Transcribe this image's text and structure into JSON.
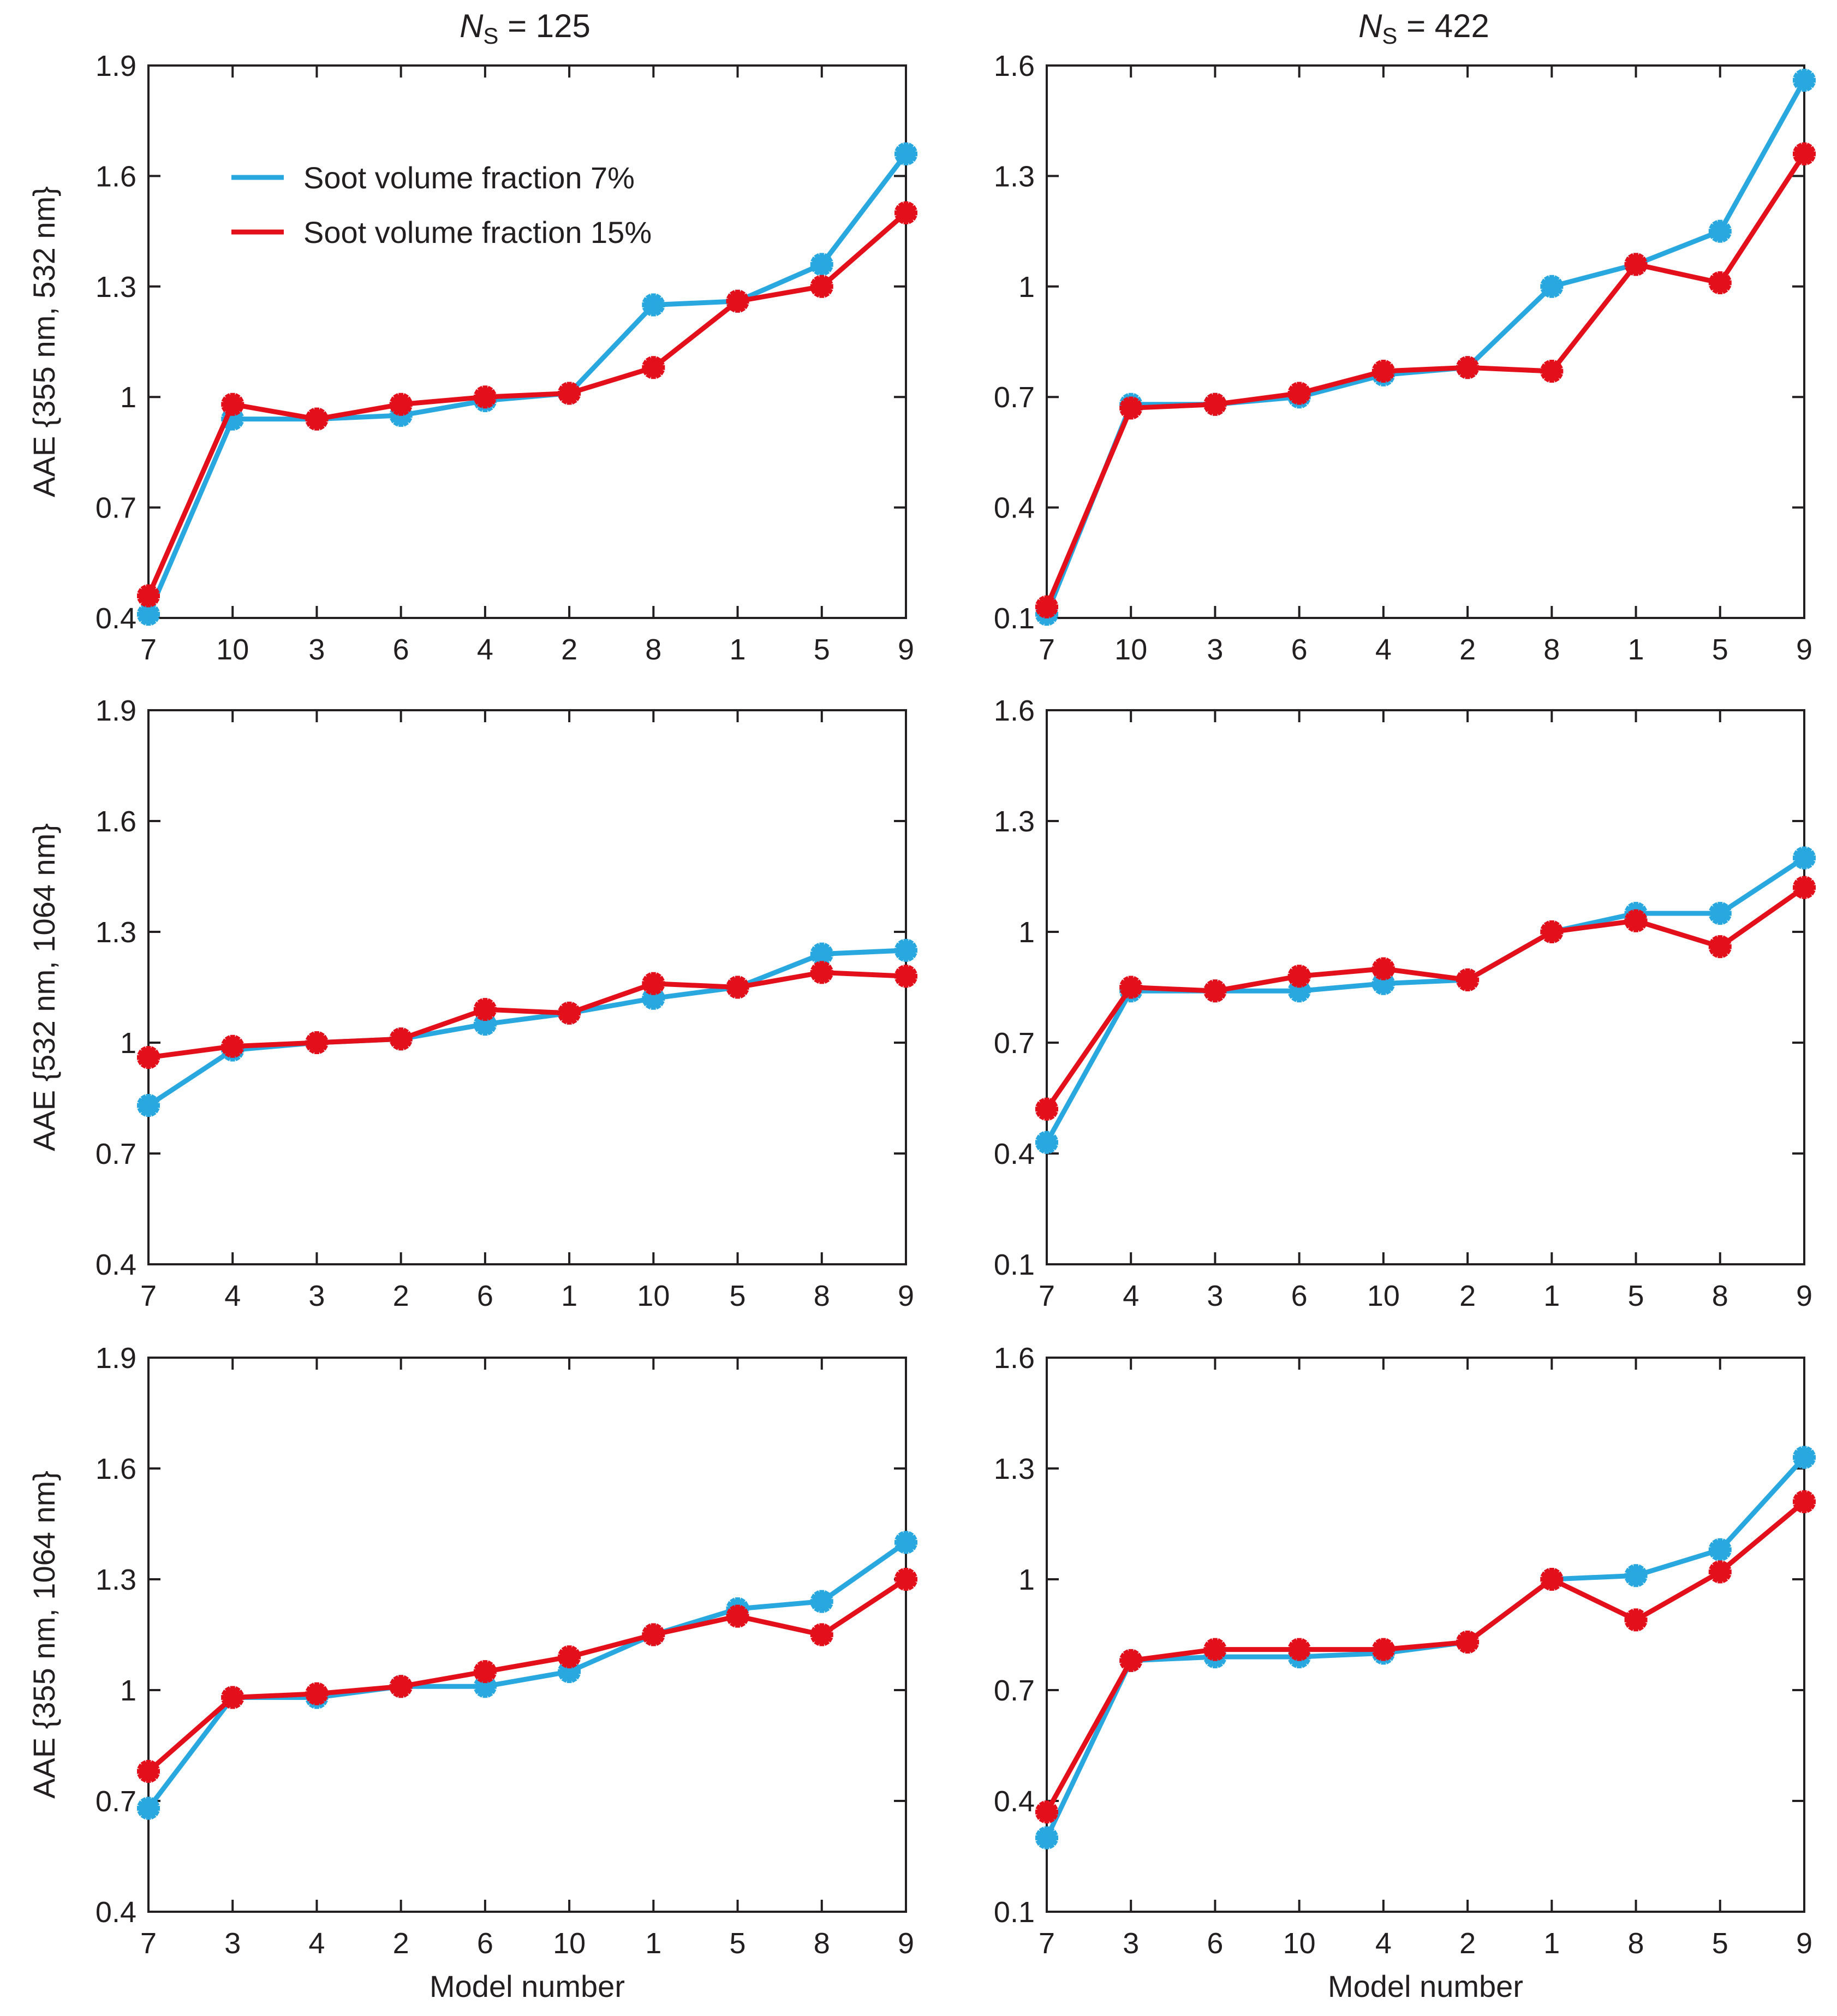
{
  "figure": {
    "column_titles": [
      {
        "italic": "N",
        "sub": "S",
        "rest": " = 125"
      },
      {
        "italic": "N",
        "sub": "S",
        "rest": " = 422"
      }
    ],
    "shared_xlabel": "Model number"
  },
  "colors": {
    "series_7": "#29a8e0",
    "series_15": "#e3101b",
    "axis": "#231f20"
  },
  "chart_data": [
    {
      "type": "line",
      "panel": "row1-col1",
      "title": "N_S = 125",
      "ylabel": "AAE {355 nm, 532 nm}",
      "xlabel": "",
      "categories": [
        "7",
        "10",
        "3",
        "6",
        "4",
        "2",
        "8",
        "1",
        "5",
        "9"
      ],
      "ylim": [
        0.4,
        1.9
      ],
      "yticks": [
        0.4,
        0.7,
        1,
        1.3,
        1.6,
        1.9
      ],
      "ytick_labels": [
        "0.4",
        "0.7",
        "1",
        "1.3",
        "1.6",
        "1.9"
      ],
      "legend": {
        "position": "top-left",
        "entries": [
          "Soot volume fraction 7%",
          "Soot volume fraction 15%"
        ]
      },
      "series": [
        {
          "name": "Soot volume fraction 7%",
          "color": "#29a8e0",
          "values": [
            0.41,
            0.94,
            0.94,
            0.95,
            0.99,
            1.01,
            1.25,
            1.26,
            1.36,
            1.66
          ]
        },
        {
          "name": "Soot volume fraction 15%",
          "color": "#e3101b",
          "values": [
            0.46,
            0.98,
            0.94,
            0.98,
            1.0,
            1.01,
            1.08,
            1.26,
            1.3,
            1.5
          ]
        }
      ]
    },
    {
      "type": "line",
      "panel": "row1-col2",
      "title": "N_S = 422",
      "ylabel": "",
      "xlabel": "",
      "categories": [
        "7",
        "10",
        "3",
        "6",
        "4",
        "2",
        "8",
        "1",
        "5",
        "9"
      ],
      "ylim": [
        0.1,
        1.6
      ],
      "yticks": [
        0.1,
        0.4,
        0.7,
        1,
        1.3,
        1.6
      ],
      "ytick_labels": [
        "0.1",
        "0.4",
        "0.7",
        "1",
        "1.3",
        "1.6"
      ],
      "series": [
        {
          "name": "Soot volume fraction 7%",
          "color": "#29a8e0",
          "values": [
            0.11,
            0.68,
            0.68,
            0.7,
            0.76,
            0.78,
            1.0,
            1.06,
            1.15,
            1.56
          ]
        },
        {
          "name": "Soot volume fraction 15%",
          "color": "#e3101b",
          "values": [
            0.13,
            0.67,
            0.68,
            0.71,
            0.77,
            0.78,
            0.77,
            1.06,
            1.01,
            1.36
          ]
        }
      ]
    },
    {
      "type": "line",
      "panel": "row2-col1",
      "ylabel": "AAE {532 nm, 1064 nm}",
      "xlabel": "",
      "categories": [
        "7",
        "4",
        "3",
        "2",
        "6",
        "1",
        "10",
        "5",
        "8",
        "9"
      ],
      "ylim": [
        0.4,
        1.9
      ],
      "yticks": [
        0.4,
        0.7,
        1,
        1.3,
        1.6,
        1.9
      ],
      "ytick_labels": [
        "0.4",
        "0.7",
        "1",
        "1.3",
        "1.6",
        "1.9"
      ],
      "series": [
        {
          "name": "Soot volume fraction 7%",
          "color": "#29a8e0",
          "values": [
            0.83,
            0.98,
            1.0,
            1.01,
            1.05,
            1.08,
            1.12,
            1.15,
            1.24,
            1.25
          ]
        },
        {
          "name": "Soot volume fraction 15%",
          "color": "#e3101b",
          "values": [
            0.96,
            0.99,
            1.0,
            1.01,
            1.09,
            1.08,
            1.16,
            1.15,
            1.19,
            1.18
          ]
        }
      ]
    },
    {
      "type": "line",
      "panel": "row2-col2",
      "ylabel": "",
      "xlabel": "",
      "categories": [
        "7",
        "4",
        "3",
        "6",
        "10",
        "2",
        "1",
        "5",
        "8",
        "9"
      ],
      "ylim": [
        0.1,
        1.6
      ],
      "yticks": [
        0.1,
        0.4,
        0.7,
        1,
        1.3,
        1.6
      ],
      "ytick_labels": [
        "0.1",
        "0.4",
        "0.7",
        "1",
        "1.3",
        "1.6"
      ],
      "series": [
        {
          "name": "Soot volume fraction 7%",
          "color": "#29a8e0",
          "values": [
            0.43,
            0.84,
            0.84,
            0.84,
            0.86,
            0.87,
            1.0,
            1.05,
            1.05,
            1.2
          ]
        },
        {
          "name": "Soot volume fraction 15%",
          "color": "#e3101b",
          "values": [
            0.52,
            0.85,
            0.84,
            0.88,
            0.9,
            0.87,
            1.0,
            1.03,
            0.96,
            1.12
          ]
        }
      ]
    },
    {
      "type": "line",
      "panel": "row3-col1",
      "ylabel": "AAE {355 nm, 1064 nm}",
      "xlabel": "Model number",
      "categories": [
        "7",
        "3",
        "4",
        "2",
        "6",
        "10",
        "1",
        "5",
        "8",
        "9"
      ],
      "ylim": [
        0.4,
        1.9
      ],
      "yticks": [
        0.4,
        0.7,
        1,
        1.3,
        1.6,
        1.9
      ],
      "ytick_labels": [
        "0.4",
        "0.7",
        "1",
        "1.3",
        "1.6",
        "1.9"
      ],
      "series": [
        {
          "name": "Soot volume fraction 7%",
          "color": "#29a8e0",
          "values": [
            0.68,
            0.98,
            0.98,
            1.01,
            1.01,
            1.05,
            1.15,
            1.22,
            1.24,
            1.4
          ]
        },
        {
          "name": "Soot volume fraction 15%",
          "color": "#e3101b",
          "values": [
            0.78,
            0.98,
            0.99,
            1.01,
            1.05,
            1.09,
            1.15,
            1.2,
            1.15,
            1.3
          ]
        }
      ]
    },
    {
      "type": "line",
      "panel": "row3-col2",
      "ylabel": "",
      "xlabel": "Model number",
      "categories": [
        "7",
        "3",
        "6",
        "10",
        "4",
        "2",
        "1",
        "8",
        "5",
        "9"
      ],
      "ylim": [
        0.1,
        1.6
      ],
      "yticks": [
        0.1,
        0.4,
        0.7,
        1,
        1.3,
        1.6
      ],
      "ytick_labels": [
        "0.1",
        "0.4",
        "0.7",
        "1",
        "1.3",
        "1.6"
      ],
      "series": [
        {
          "name": "Soot volume fraction 7%",
          "color": "#29a8e0",
          "values": [
            0.3,
            0.78,
            0.79,
            0.79,
            0.8,
            0.83,
            1.0,
            1.01,
            1.08,
            1.33
          ]
        },
        {
          "name": "Soot volume fraction 15%",
          "color": "#e3101b",
          "values": [
            0.37,
            0.78,
            0.81,
            0.81,
            0.81,
            0.83,
            1.0,
            0.89,
            1.02,
            1.21
          ]
        }
      ]
    }
  ]
}
